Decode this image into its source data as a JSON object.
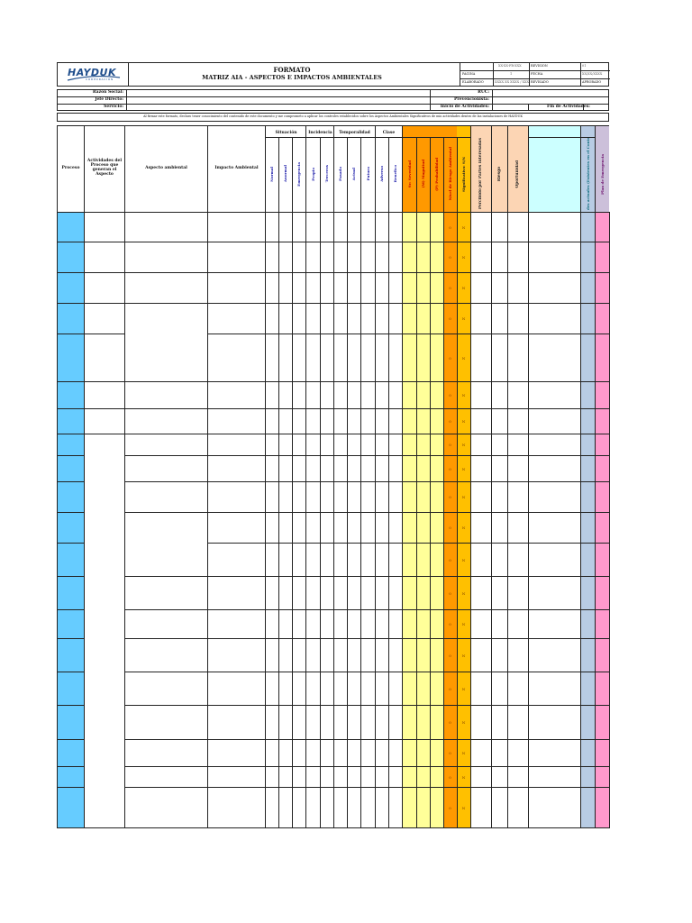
{
  "header": {
    "logo_text": "HAYDUK",
    "logo_sub": "CORPORACION",
    "doc_type": "FORMATO",
    "doc_title": "MATRIZ AIA - ASPECTOS E IMPACTOS AMBIENTALES",
    "meta": {
      "r1": [
        "",
        "XX-XX-FR-XXX",
        "REVISION",
        "01"
      ],
      "r2": [
        "PAGINA",
        "1",
        "FECHA",
        "XX/XX/XXXX"
      ],
      "r3": [
        "ELABORADO",
        "XXXX XX XXXX / XXX",
        "REVISADO",
        "APROBADO"
      ]
    }
  },
  "info": {
    "razon_social": "Razón Social:",
    "jefe_directo": "Jefe Directo:",
    "servicio": "Servicio:",
    "ruc": "RUC:",
    "prevencionista": "Prevencionista:",
    "inicio": "Inicio de Actividades:",
    "fin": "Fin de Actividades:",
    "notice": "Al firmar este formato, declaro tener conocimiento del contenido de este documento y me comprometo a aplicar los controles establecidos sobre los Aspectos Ambientales Significativos de mis actividades dentro de las instalaciones de HAYDUK"
  },
  "columns": {
    "proceso": "Proceso",
    "actividades": "Actividades del Proceso que generan el Aspecto",
    "aspecto": "Aspecto ambiental",
    "impacto": "Impacto Ambiental",
    "group_situacion": "Situación",
    "group_incidencia": "Incidencia",
    "group_temporalidad": "Temporalidad",
    "group_clase": "Clase",
    "group_valoracion": "Valoración de Significancia",
    "group_control": "Control Operativo del Aspecto",
    "normal": "Normal",
    "anormal": "Anormal",
    "emergencia": "Emergencia",
    "propio": "Propio",
    "terceros": "Terceros",
    "pasado": "Pasado",
    "actual": "Actual",
    "futuro": "Futuro",
    "adverso": "Adverso",
    "benefico": "Benefico",
    "severidad": "Sv: Severidad",
    "magnitud": "(M) Magnitud",
    "probabilidad": "(P) Probabilidad",
    "nivel_riesgo": "Nivel de Riesgo Ambiental",
    "significativo": "Significativo: S/N",
    "percibido": "Percibido por Partes Interesadas",
    "riesgo": "Riesgo",
    "oportunidad": "Oportunidad",
    "control_desc": "Maquinaria (Especificación, Mantenimiento) Material (Especificación) Método (Procedimiento) Método (Criterio Operacional) Mano de Obra (Capacitación y Sensibilización)",
    "controles_actuales": "Controles actuales (Existentes en el Contratista)",
    "plan_emergencia": "Plan de Emergencia"
  },
  "row_values": {
    "nivel": "0",
    "significativo": "N"
  },
  "colors": {
    "proceso": "#66ccff",
    "valoracion_yellow": "#ffff99",
    "nivel_orange": "#ff9900",
    "significativo_orange": "#ffc000",
    "peach": "#fcd5b4",
    "control_cyan": "#ccffff",
    "controles_blue": "#b8cce4",
    "plan_pink": "#ff99cc",
    "plan_header_purple": "#ccc0da",
    "header_navy": "#1f4e8c"
  }
}
